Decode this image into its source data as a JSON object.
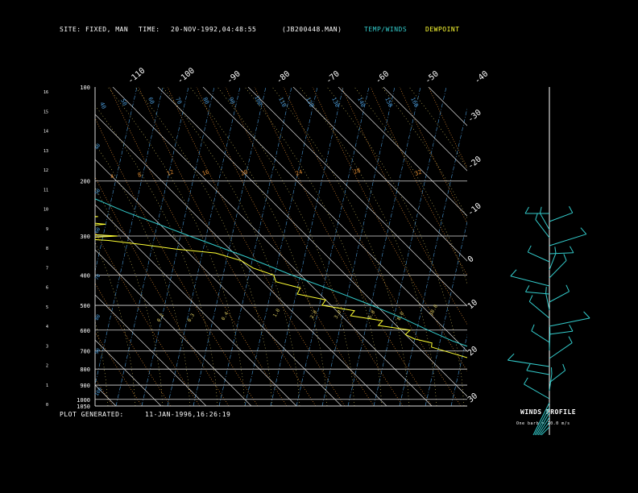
{
  "header": {
    "site_label": "SITE:",
    "site_value": "FIXED, MAN",
    "time_label": "TIME:",
    "time_value": "20-NOV-1992,04:48:55",
    "file": "(JB200448.MAN)",
    "temp_label": "TEMP/WINDS",
    "dew_label": "DEWPOINT"
  },
  "footer": {
    "generated_label": "PLOT GENERATED:",
    "generated_value": "11-JAN-1996,16:26:19"
  },
  "winds": {
    "title": "WINDS PROFILE",
    "note": "One barb = 10.0 m/s"
  },
  "colors": {
    "temp": "#33cccc",
    "dewpoint": "#ffff33",
    "grid": "#d8d8d8",
    "dry_adiabat": "#e08a30",
    "moist_adiabat": "#d8c860",
    "mixing_ratio": "#4a9ad8",
    "text": "#ffffff"
  },
  "chart_data": {
    "type": "line",
    "pressure_levels": [
      "100",
      "200",
      "300",
      "400",
      "500",
      "600",
      "700",
      "800",
      "900",
      "1000",
      "1050"
    ],
    "pressure_values": [
      100,
      200,
      300,
      400,
      500,
      600,
      700,
      800,
      900,
      1000,
      1050
    ],
    "height_ticks": [
      "16",
      "15",
      "14",
      "13",
      "12",
      "11",
      "10",
      "9",
      "8",
      "7",
      "6",
      "5",
      "4",
      "3",
      "2",
      "1",
      "0"
    ],
    "top_temp_ticks": [
      "-110",
      "-100",
      "-90",
      "-80",
      "-70",
      "-60",
      "-50",
      "-40"
    ],
    "right_temp_ticks": [
      "-30",
      "-20",
      "-10",
      "0",
      "10",
      "20",
      "30"
    ],
    "mixing_ratio_labels": [
      "40",
      "50",
      "60",
      "70",
      "80",
      "90",
      "100",
      "110",
      "120",
      "130",
      "140",
      "150",
      "160"
    ],
    "dry_adiabat_labels": [
      "4",
      "8",
      "12",
      "16",
      "20",
      "24",
      "28",
      "32"
    ],
    "moist_adiabat_labels": [
      "0.2",
      "0.3",
      "0.4",
      "1.0",
      "2.0",
      "3.0",
      "6.0",
      "8.0",
      "10.0"
    ],
    "temperature_profile": [
      {
        "p": 1040,
        "t": 22
      },
      {
        "p": 1000,
        "t": 19
      },
      {
        "p": 950,
        "t": 16
      },
      {
        "p": 900,
        "t": 14
      },
      {
        "p": 850,
        "t": 12
      },
      {
        "p": 800,
        "t": 10
      },
      {
        "p": 750,
        "t": 7
      },
      {
        "p": 700,
        "t": 3
      },
      {
        "p": 650,
        "t": -1
      },
      {
        "p": 600,
        "t": -4
      },
      {
        "p": 550,
        "t": -7
      },
      {
        "p": 500,
        "t": -11
      },
      {
        "p": 450,
        "t": -16
      },
      {
        "p": 400,
        "t": -22
      },
      {
        "p": 350,
        "t": -28
      },
      {
        "p": 300,
        "t": -36
      },
      {
        "p": 250,
        "t": -45
      },
      {
        "p": 200,
        "t": -54
      },
      {
        "p": 175,
        "t": -60
      },
      {
        "p": 150,
        "t": -66
      },
      {
        "p": 125,
        "t": -72
      },
      {
        "p": 100,
        "t": -78
      }
    ],
    "dewpoint_profile": [
      {
        "p": 1040,
        "t": 17
      },
      {
        "p": 1000,
        "t": 14
      },
      {
        "p": 950,
        "t": 11
      },
      {
        "p": 900,
        "t": 9
      },
      {
        "p": 850,
        "t": 7
      },
      {
        "p": 800,
        "t": 4
      },
      {
        "p": 750,
        "t": 0
      },
      {
        "p": 700,
        "t": -5
      },
      {
        "p": 680,
        "t": -7
      },
      {
        "p": 660,
        "t": -6
      },
      {
        "p": 640,
        "t": -9
      },
      {
        "p": 620,
        "t": -10
      },
      {
        "p": 600,
        "t": -8
      },
      {
        "p": 580,
        "t": -14
      },
      {
        "p": 560,
        "t": -12
      },
      {
        "p": 540,
        "t": -18
      },
      {
        "p": 520,
        "t": -16
      },
      {
        "p": 500,
        "t": -22
      },
      {
        "p": 480,
        "t": -20
      },
      {
        "p": 460,
        "t": -25
      },
      {
        "p": 440,
        "t": -23
      },
      {
        "p": 420,
        "t": -27
      },
      {
        "p": 400,
        "t": -26
      },
      {
        "p": 380,
        "t": -29
      },
      {
        "p": 360,
        "t": -30
      },
      {
        "p": 340,
        "t": -34
      },
      {
        "p": 330,
        "t": -42
      },
      {
        "p": 320,
        "t": -48
      },
      {
        "p": 310,
        "t": -55
      },
      {
        "p": 305,
        "t": -62
      },
      {
        "p": 300,
        "t": -52
      },
      {
        "p": 290,
        "t": -68
      },
      {
        "p": 280,
        "t": -60
      },
      {
        "p": 275,
        "t": -52
      },
      {
        "p": 265,
        "t": -62
      },
      {
        "p": 260,
        "t": -52
      },
      {
        "p": 255,
        "t": -66
      },
      {
        "p": 250,
        "t": -58
      },
      {
        "p": 240,
        "t": -66
      },
      {
        "p": 230,
        "t": -64
      },
      {
        "p": 220,
        "t": -70
      },
      {
        "p": 200,
        "t": -72
      },
      {
        "p": 175,
        "t": -76
      },
      {
        "p": 150,
        "t": -80
      },
      {
        "p": 125,
        "t": -86
      },
      {
        "p": 110,
        "t": -90
      },
      {
        "p": 100,
        "t": -92
      }
    ]
  }
}
